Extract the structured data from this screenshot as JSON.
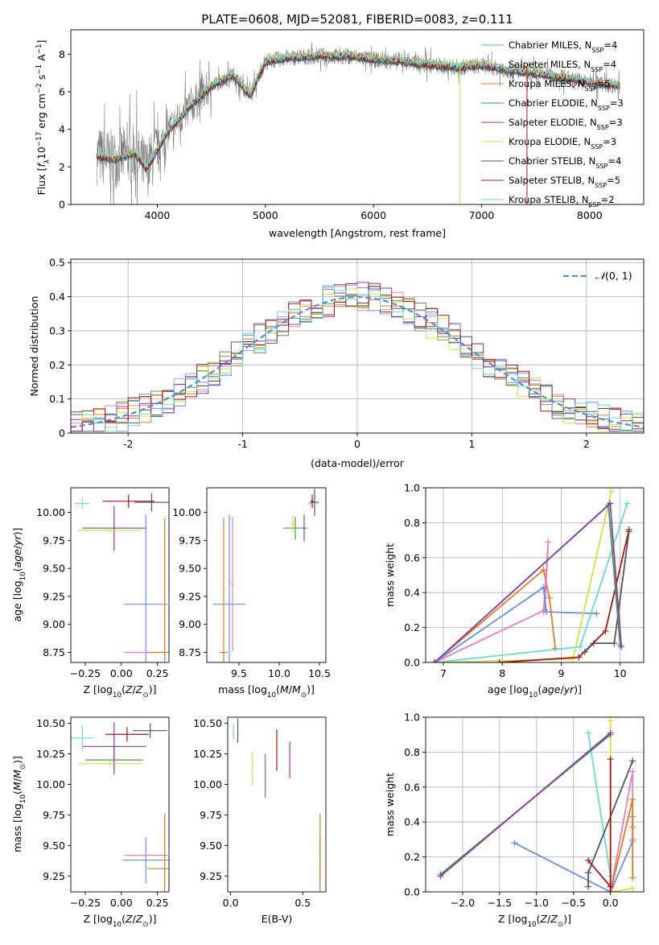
{
  "figure": {
    "title": "PLATE=0608, MJD=52081, FIBERID=0083, z=0.111"
  },
  "colors": {
    "Chabrier MILES": "#6a8fdc",
    "Salpeter MILES": "#e57fc0",
    "Kroupa MILES": "#e07b25",
    "Chabrier ELODIE": "#4c9a4c",
    "Salpeter ELODIE": "#8b3fa6",
    "Kroupa ELODIE": "#d4e04a",
    "Chabrier STELIB": "#555555",
    "Salpeter STELIB": "#a31818",
    "Kroupa STELIB": "#6fd6d6",
    "grid": "#b0b0b0",
    "data": "#808080"
  },
  "chart_data": [
    {
      "id": "spectrum",
      "type": "line",
      "title": "PLATE=0608, MJD=52081, FIBERID=0083, z=0.111",
      "xlabel": "wavelength [Angstrom, rest frame]",
      "ylabel": "Flux [f_λ10^-17 erg cm^-2 s^-1 A^-1]",
      "xlim": [
        3200,
        8500
      ],
      "ylim": [
        0,
        9.3
      ],
      "xticks": [
        4000,
        5000,
        6000,
        7000,
        8000
      ],
      "yticks": [
        0,
        2,
        4,
        6,
        8
      ],
      "grid": false,
      "legend_position": "right",
      "legend": [
        {
          "label": "Chabrier MILES, N_SSP=4",
          "model": "Chabrier MILES"
        },
        {
          "label": "Salpeter MILES, N_SSP=4",
          "model": "Salpeter MILES"
        },
        {
          "label": "Kroupa MILES, N_SSP=5",
          "model": "Kroupa MILES"
        },
        {
          "label": "Chabrier ELODIE, N_SSP=3",
          "model": "Chabrier ELODIE"
        },
        {
          "label": "Salpeter ELODIE, N_SSP=3",
          "model": "Salpeter ELODIE"
        },
        {
          "label": "Kroupa ELODIE, N_SSP=3",
          "model": "Kroupa ELODIE"
        },
        {
          "label": "Chabrier STELIB, N_SSP=4",
          "model": "Chabrier STELIB"
        },
        {
          "label": "Salpeter STELIB, N_SSP=5",
          "model": "Salpeter STELIB"
        },
        {
          "label": "Kroupa STELIB, N_SSP=2",
          "model": "Kroupa STELIB"
        }
      ],
      "model_curve": {
        "x": [
          3430,
          3600,
          3700,
          3800,
          3900,
          4000,
          4100,
          4300,
          4500,
          4700,
          4860,
          5000,
          5200,
          5500,
          5800,
          6000,
          6300,
          6560,
          6800,
          7000,
          7300,
          7600,
          8000,
          8300
        ],
        "y": [
          2.6,
          2.4,
          2.6,
          2.7,
          1.9,
          2.9,
          3.9,
          5.2,
          6.3,
          6.9,
          5.8,
          7.6,
          7.8,
          7.9,
          7.9,
          7.7,
          7.6,
          7.4,
          7.3,
          7.4,
          7.1,
          6.9,
          6.5,
          6.3
        ]
      }
    },
    {
      "id": "residuals",
      "type": "histogram",
      "xlabel": "(data-model)/error",
      "ylabel": "Normed distribution",
      "xlim": [
        -2.5,
        2.5
      ],
      "ylim": [
        0,
        0.51
      ],
      "xticks": [
        -2,
        -1,
        0,
        1,
        2
      ],
      "yticks": [
        0.0,
        0.1,
        0.2,
        0.3,
        0.4,
        0.5
      ],
      "grid": true,
      "legend_position": "top-right",
      "reference": {
        "label": "N(0,1)",
        "mu": 0,
        "sigma": 1
      }
    },
    {
      "id": "age_vs_Z",
      "type": "scatter",
      "xlabel": "Z [log10(Z/Z⊙)]",
      "ylabel": "age  [log10(age/yr)]",
      "xlim": [
        -0.35,
        0.33
      ],
      "ylim": [
        8.66,
        10.22
      ],
      "xticks": [
        -0.25,
        0.0,
        0.25
      ],
      "yticks": [
        8.75,
        9.0,
        9.25,
        9.5,
        9.75,
        10.0
      ],
      "xtick_labels": [
        "−0.25",
        "0.00",
        "0.25"
      ],
      "ytick_labels": [
        "8.75",
        "9.00",
        "9.25",
        "9.50",
        "9.75",
        "10.00"
      ],
      "points": [
        {
          "model": "Chabrier MILES",
          "x": 0.17,
          "y": 9.18,
          "dx": 0.15,
          "dy": 0.8
        },
        {
          "model": "Salpeter MILES",
          "x": 0.17,
          "y": 8.75,
          "dx": 0.15,
          "dy": 0.04
        },
        {
          "model": "Kroupa MILES",
          "x": 0.3,
          "y": 8.75,
          "dx": 0.12,
          "dy": 1.2
        },
        {
          "model": "Chabrier ELODIE",
          "x": -0.05,
          "y": 9.86,
          "dx": 0.2,
          "dy": 0.04
        },
        {
          "model": "Salpeter ELODIE",
          "x": -0.05,
          "y": 9.86,
          "dx": 0.22,
          "dy": 0.2
        },
        {
          "model": "Kroupa ELODIE",
          "x": -0.08,
          "y": 9.84,
          "dx": 0.22,
          "dy": 0.02
        },
        {
          "model": "Chabrier STELIB",
          "x": 0.21,
          "y": 10.09,
          "dx": 0.12,
          "dy": 0.08
        },
        {
          "model": "Salpeter STELIB",
          "x": 0.05,
          "y": 10.1,
          "dx": 0.18,
          "dy": 0.06
        },
        {
          "model": "Kroupa STELIB",
          "x": -0.27,
          "y": 10.08,
          "dx": 0.05,
          "dy": 0.05
        }
      ]
    },
    {
      "id": "age_vs_mass",
      "type": "scatter",
      "xlabel": "mass [log10(M/M⊙)]",
      "ylabel": "",
      "xlim": [
        9.1,
        10.58
      ],
      "ylim": [
        8.66,
        10.22
      ],
      "xticks": [
        9.5,
        10.0,
        10.5
      ],
      "yticks": [
        8.75,
        9.0,
        9.25,
        9.5,
        9.75,
        10.0
      ],
      "xtick_labels": [
        "9.5",
        "10.0",
        "10.5"
      ],
      "ytick_labels": [
        "8.75",
        "9.00",
        "9.25",
        "9.50",
        "9.75",
        "10.00"
      ],
      "points": [
        {
          "model": "Chabrier MILES",
          "x": 9.38,
          "y": 9.18,
          "dx": 0.2,
          "dy": 0.8
        },
        {
          "model": "Salpeter MILES",
          "x": 9.42,
          "y": 9.36,
          "dx": 0.02,
          "dy": 0.6
        },
        {
          "model": "Kroupa MILES",
          "x": 9.31,
          "y": 8.75,
          "dx": 0.05,
          "dy": 1.2
        },
        {
          "model": "Chabrier ELODIE",
          "x": 10.2,
          "y": 9.86,
          "dx": 0.15,
          "dy": 0.1
        },
        {
          "model": "Salpeter ELODIE",
          "x": 10.31,
          "y": 9.86,
          "dx": 0.02,
          "dy": 0.12
        },
        {
          "model": "Kroupa ELODIE",
          "x": 10.17,
          "y": 9.9,
          "dx": 0.02,
          "dy": 0.08
        },
        {
          "model": "Chabrier STELIB",
          "x": 10.44,
          "y": 10.09,
          "dx": 0.05,
          "dy": 0.12
        },
        {
          "model": "Salpeter STELIB",
          "x": 10.41,
          "y": 10.1,
          "dx": 0.02,
          "dy": 0.06
        },
        {
          "model": "Kroupa STELIB",
          "x": 10.38,
          "y": 10.08,
          "dx": 0.02,
          "dy": 0.02
        }
      ]
    },
    {
      "id": "weight_vs_age",
      "type": "line",
      "xlabel": "age  [log10(age/yr)]",
      "ylabel": "mass weight",
      "xlim": [
        6.7,
        10.4
      ],
      "ylim": [
        0,
        1.0
      ],
      "xticks": [
        7,
        8,
        9,
        10
      ],
      "yticks": [
        0.0,
        0.2,
        0.4,
        0.6,
        0.8,
        1.0
      ],
      "xtick_labels": [
        "7",
        "8",
        "9",
        "10"
      ],
      "ytick_labels": [
        "0.0",
        "0.2",
        "0.4",
        "0.6",
        "0.8",
        "1.0"
      ],
      "grid": true,
      "series": [
        {
          "model": "Kroupa MILES",
          "x": [
            6.85,
            8.7,
            8.8,
            8.9
          ],
          "y": [
            0.0,
            0.53,
            0.37,
            0.08
          ]
        },
        {
          "model": "Salpeter MILES",
          "x": [
            6.85,
            8.72,
            8.78,
            8.7
          ],
          "y": [
            0.0,
            0.3,
            0.69,
            0.29
          ]
        },
        {
          "model": "Chabrier MILES",
          "x": [
            6.85,
            8.7,
            8.75,
            9.6
          ],
          "y": [
            0.0,
            0.43,
            0.29,
            0.28
          ]
        },
        {
          "model": "Kroupa STELIB",
          "x": [
            6.85,
            9.32,
            10.12
          ],
          "y": [
            0.0,
            0.09,
            0.91
          ]
        },
        {
          "model": "Kroupa ELODIE",
          "x": [
            6.85,
            9.2,
            9.85
          ],
          "y": [
            0.0,
            0.02,
            0.98
          ]
        },
        {
          "model": "Salpeter STELIB",
          "x": [
            7.95,
            9.3,
            9.75,
            10.15
          ],
          "y": [
            0.0,
            0.03,
            0.18,
            0.76
          ]
        },
        {
          "model": "Chabrier STELIB",
          "x": [
            9.4,
            9.55,
            9.9,
            10.15
          ],
          "y": [
            0.06,
            0.11,
            0.11,
            0.75
          ]
        },
        {
          "model": "Chabrier ELODIE",
          "x": [
            6.85,
            9.8,
            10.0
          ],
          "y": [
            0.0,
            0.9,
            0.1
          ]
        },
        {
          "model": "Salpeter ELODIE",
          "x": [
            6.85,
            9.83,
            10.02
          ],
          "y": [
            0.0,
            0.91,
            0.09
          ]
        }
      ]
    },
    {
      "id": "mass_vs_Z",
      "type": "scatter",
      "xlabel": "Z [log10(Z/Z⊙)]",
      "ylabel": "mass [log10(M/M⊙)]",
      "xlim": [
        -0.35,
        0.33
      ],
      "ylim": [
        9.12,
        10.55
      ],
      "xticks": [
        -0.25,
        0.0,
        0.25
      ],
      "yticks": [
        9.25,
        9.5,
        9.75,
        10.0,
        10.25,
        10.5
      ],
      "xtick_labels": [
        "−0.25",
        "0.00",
        "0.25"
      ],
      "ytick_labels": [
        "9.25",
        "9.50",
        "9.75",
        "10.00",
        "10.25",
        "10.50"
      ],
      "points": [
        {
          "model": "Chabrier MILES",
          "x": 0.17,
          "y": 9.38,
          "dx": 0.16,
          "dy": 0.19
        },
        {
          "model": "Salpeter MILES",
          "x": 0.17,
          "y": 9.42,
          "dx": 0.15,
          "dy": 0.02
        },
        {
          "model": "Kroupa MILES",
          "x": 0.3,
          "y": 9.31,
          "dx": 0.12,
          "dy": 0.45
        },
        {
          "model": "Chabrier ELODIE",
          "x": -0.05,
          "y": 10.2,
          "dx": 0.2,
          "dy": 0.12
        },
        {
          "model": "Salpeter ELODIE",
          "x": -0.05,
          "y": 10.31,
          "dx": 0.22,
          "dy": 0.2
        },
        {
          "model": "Kroupa ELODIE",
          "x": -0.08,
          "y": 10.17,
          "dx": 0.22,
          "dy": 0.02
        },
        {
          "model": "Chabrier STELIB",
          "x": 0.2,
          "y": 10.44,
          "dx": 0.12,
          "dy": 0.06
        },
        {
          "model": "Salpeter STELIB",
          "x": 0.04,
          "y": 10.41,
          "dx": 0.15,
          "dy": 0.06
        },
        {
          "model": "Kroupa STELIB",
          "x": -0.27,
          "y": 10.38,
          "dx": 0.08,
          "dy": 0.1
        }
      ]
    },
    {
      "id": "mass_vs_EBV",
      "type": "scatter",
      "xlabel": "E(B-V)",
      "ylabel": "",
      "xlim": [
        -0.02,
        0.66
      ],
      "ylim": [
        9.12,
        10.55
      ],
      "xticks": [
        0.0,
        0.5
      ],
      "yticks": [
        9.25,
        9.5,
        9.75,
        10.0,
        10.25,
        10.5
      ],
      "xtick_labels": [
        "0.0",
        "0.5"
      ],
      "ytick_labels": [
        "9.25",
        "9.50",
        "9.75",
        "10.00",
        "10.25",
        "10.50"
      ],
      "points": [
        {
          "model": "Chabrier MILES",
          "x": 0.62,
          "y": 9.38,
          "dx": 0,
          "dy": 0.19
        },
        {
          "model": "Salpeter MILES",
          "x": 0.62,
          "y": 9.42,
          "dx": 0,
          "dy": 0.02
        },
        {
          "model": "Kroupa MILES",
          "x": 0.62,
          "y": 9.31,
          "dx": 0,
          "dy": 0.45
        },
        {
          "model": "Chabrier ELODIE",
          "x": 0.24,
          "y": 10.07,
          "dx": 0,
          "dy": 0.18
        },
        {
          "model": "Salpeter ELODIE",
          "x": 0.41,
          "y": 10.2,
          "dx": 0,
          "dy": 0.15
        },
        {
          "model": "Kroupa ELODIE",
          "x": 0.15,
          "y": 10.13,
          "dx": 0,
          "dy": 0.14
        },
        {
          "model": "Chabrier STELIB",
          "x": 0.05,
          "y": 10.44,
          "dx": 0,
          "dy": 0.1
        },
        {
          "model": "Salpeter STELIB",
          "x": 0.32,
          "y": 10.28,
          "dx": 0,
          "dy": 0.17
        },
        {
          "model": "Kroupa STELIB",
          "x": 0.02,
          "y": 10.43,
          "dx": 0,
          "dy": 0.06
        }
      ]
    },
    {
      "id": "weight_vs_Z",
      "type": "line",
      "xlabel": "Z [log10(Z/Z⊙)]",
      "ylabel": "mass weight",
      "xlim": [
        -2.5,
        0.45
      ],
      "ylim": [
        0,
        1.0
      ],
      "xticks": [
        -2.0,
        -1.5,
        -1.0,
        -0.5,
        0.0
      ],
      "yticks": [
        0.0,
        0.2,
        0.4,
        0.6,
        0.8,
        1.0
      ],
      "xtick_labels": [
        "−2.0",
        "−1.5",
        "−1.0",
        "−0.5",
        "0.0"
      ],
      "ytick_labels": [
        "0.0",
        "0.2",
        "0.4",
        "0.6",
        "0.8",
        "1.0"
      ],
      "grid": true,
      "series": [
        {
          "model": "Chabrier MILES",
          "x": [
            -1.3,
            0.0,
            0.3,
            0.3
          ],
          "y": [
            0.28,
            0.0,
            0.29,
            0.43
          ]
        },
        {
          "model": "Salpeter MILES",
          "x": [
            0.0,
            0.3,
            0.3
          ],
          "y": [
            0.0,
            0.69,
            0.3
          ]
        },
        {
          "model": "Kroupa MILES",
          "x": [
            0.0,
            0.3,
            0.3,
            0.3
          ],
          "y": [
            0.0,
            0.53,
            0.37,
            0.08
          ]
        },
        {
          "model": "Kroupa STELIB",
          "x": [
            -0.3,
            0.0,
            0.0
          ],
          "y": [
            0.91,
            0.09,
            0.0
          ]
        },
        {
          "model": "Chabrier STELIB",
          "x": [
            -0.3,
            -0.3,
            0.3
          ],
          "y": [
            0.03,
            0.11,
            0.75
          ]
        },
        {
          "model": "Kroupa ELODIE",
          "x": [
            0.0,
            0.0,
            0.3
          ],
          "y": [
            0.98,
            0.0,
            0.02
          ]
        },
        {
          "model": "Salpeter STELIB",
          "x": [
            -0.3,
            0.0,
            0.0,
            0.0
          ],
          "y": [
            0.18,
            0.03,
            0.76,
            0.0
          ]
        },
        {
          "model": "Chabrier ELODIE",
          "x": [
            -2.3,
            0.0
          ],
          "y": [
            0.1,
            0.9
          ]
        },
        {
          "model": "Salpeter ELODIE",
          "x": [
            -2.3,
            0.0
          ],
          "y": [
            0.09,
            0.91
          ]
        }
      ]
    }
  ]
}
